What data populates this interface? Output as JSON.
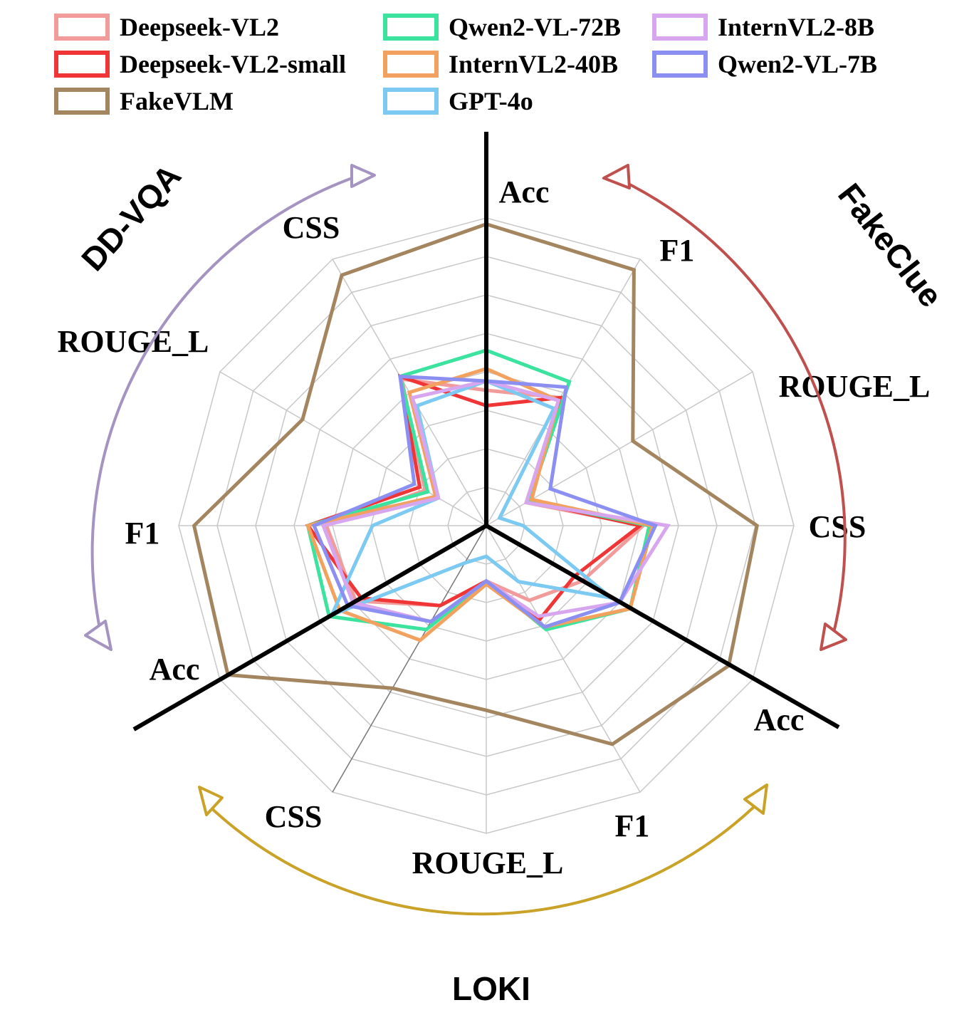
{
  "chart_data": {
    "type": "radar",
    "axes": [
      {
        "group": "FakeClue",
        "metric": "Acc"
      },
      {
        "group": "FakeClue",
        "metric": "F1"
      },
      {
        "group": "FakeClue",
        "metric": "ROUGE_L"
      },
      {
        "group": "FakeClue",
        "metric": "CSS"
      },
      {
        "group": "LOKI",
        "metric": "Acc"
      },
      {
        "group": "LOKI",
        "metric": "F1"
      },
      {
        "group": "LOKI",
        "metric": "ROUGE_L"
      },
      {
        "group": "LOKI",
        "metric": "CSS"
      },
      {
        "group": "DD-VQA",
        "metric": "Acc"
      },
      {
        "group": "DD-VQA",
        "metric": "F1"
      },
      {
        "group": "DD-VQA",
        "metric": "ROUGE_L"
      },
      {
        "group": "DD-VQA",
        "metric": "CSS"
      }
    ],
    "groups": [
      {
        "name": "FakeClue",
        "color": "#c0504d"
      },
      {
        "name": "LOKI",
        "color": "#c9a227"
      },
      {
        "name": "DD-VQA",
        "color": "#a593c2"
      }
    ],
    "levels": 8,
    "series": [
      {
        "name": "Deepseek-VL2",
        "color": "#f19b9b",
        "values": [
          0.44,
          0.48,
          0.15,
          0.51,
          0.36,
          0.28,
          0.18,
          0.3,
          0.49,
          0.52,
          0.23,
          0.55
        ]
      },
      {
        "name": "Deepseek-VL2-small",
        "color": "#ef3535",
        "values": [
          0.39,
          0.48,
          0.16,
          0.5,
          0.33,
          0.35,
          0.18,
          0.3,
          0.47,
          0.58,
          0.25,
          0.56
        ]
      },
      {
        "name": "FakeVLM",
        "color": "#a3865f",
        "values": [
          0.98,
          0.96,
          0.55,
          0.88,
          0.91,
          0.82,
          0.6,
          0.61,
          0.97,
          0.95,
          0.69,
          0.94
        ]
      },
      {
        "name": "Qwen2-VL-72B",
        "color": "#3ce39e",
        "values": [
          0.57,
          0.54,
          0.16,
          0.53,
          0.54,
          0.39,
          0.18,
          0.39,
          0.59,
          0.58,
          0.22,
          0.56
        ]
      },
      {
        "name": "InternVL2-40B",
        "color": "#f2a15f",
        "values": [
          0.51,
          0.47,
          0.17,
          0.54,
          0.54,
          0.38,
          0.19,
          0.43,
          0.55,
          0.58,
          0.19,
          0.5
        ]
      },
      {
        "name": "GPT-4o",
        "color": "#7ccaf2",
        "values": [
          0.47,
          0.44,
          0.05,
          0.12,
          0.47,
          0.21,
          0.1,
          0.14,
          0.58,
          0.37,
          0.18,
          0.45
        ]
      },
      {
        "name": "InternVL2-8B",
        "color": "#d7a6ef",
        "values": [
          0.47,
          0.47,
          0.15,
          0.59,
          0.5,
          0.34,
          0.18,
          0.36,
          0.5,
          0.53,
          0.18,
          0.48
        ]
      },
      {
        "name": "Qwen2-VL-7B",
        "color": "#8b8ff2",
        "values": [
          0.47,
          0.52,
          0.24,
          0.55,
          0.5,
          0.38,
          0.18,
          0.36,
          0.52,
          0.56,
          0.27,
          0.56
        ]
      }
    ]
  }
}
